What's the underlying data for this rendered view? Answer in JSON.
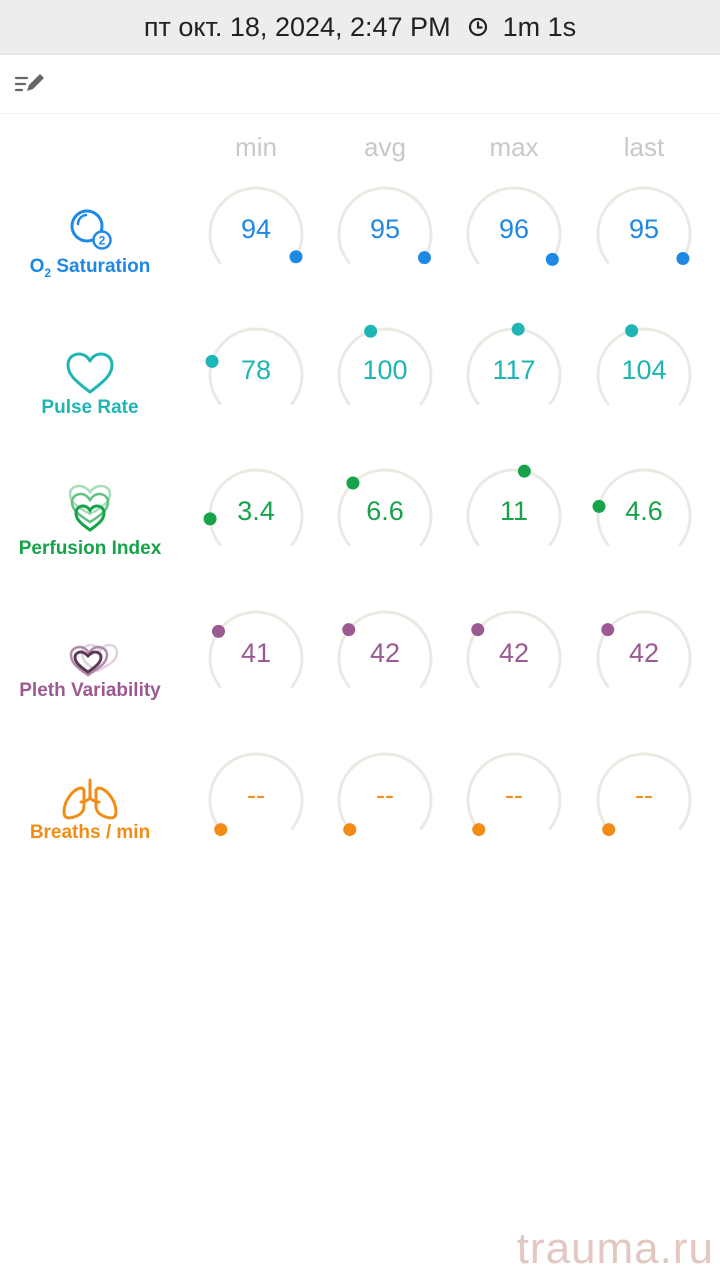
{
  "status_bar": {
    "datetime": "пт окт. 18, 2024, 2:47 PM",
    "duration": "1m 1s",
    "duration_icon": "clock-icon"
  },
  "toolbar": {
    "edit_icon": "edit-list-icon"
  },
  "columns": [
    "min",
    "avg",
    "max",
    "last"
  ],
  "rows": [
    {
      "id": "spo2",
      "label_main": "O",
      "label_sub": "2",
      "label_rest": " Saturation",
      "icon": "o2-bubble-icon",
      "color": "#1e88e5",
      "values": [
        "94",
        "95",
        "96",
        "95"
      ],
      "levels": [
        0.96,
        0.965,
        0.975,
        0.97
      ]
    },
    {
      "id": "pulse",
      "label": "Pulse Rate",
      "icon": "heart-outline-icon",
      "color": "#1fb5b5",
      "values": [
        "78",
        "100",
        "117",
        "104"
      ],
      "levels": [
        0.22,
        0.43,
        0.52,
        0.44
      ]
    },
    {
      "id": "pi",
      "label": "Perfusion Index",
      "icon": "layered-heart-icon",
      "color": "#16a34a",
      "values": [
        "3.4",
        "6.6",
        "11",
        "4.6"
      ],
      "levels": [
        0.14,
        0.33,
        0.55,
        0.2
      ]
    },
    {
      "id": "pvi",
      "label": "Pleth Variability",
      "icon": "pleth-hearts-icon",
      "color": "#9b5a91",
      "values": [
        "41",
        "42",
        "42",
        "42"
      ],
      "levels": [
        0.29,
        0.3,
        0.3,
        0.3
      ]
    },
    {
      "id": "rr",
      "label": "Breaths / min",
      "icon": "lungs-icon",
      "color": "#f28c15",
      "values": [
        "--",
        "--",
        "--",
        "--"
      ],
      "levels": [
        0,
        0,
        0,
        0
      ]
    }
  ],
  "watermark": "trauma.ru"
}
